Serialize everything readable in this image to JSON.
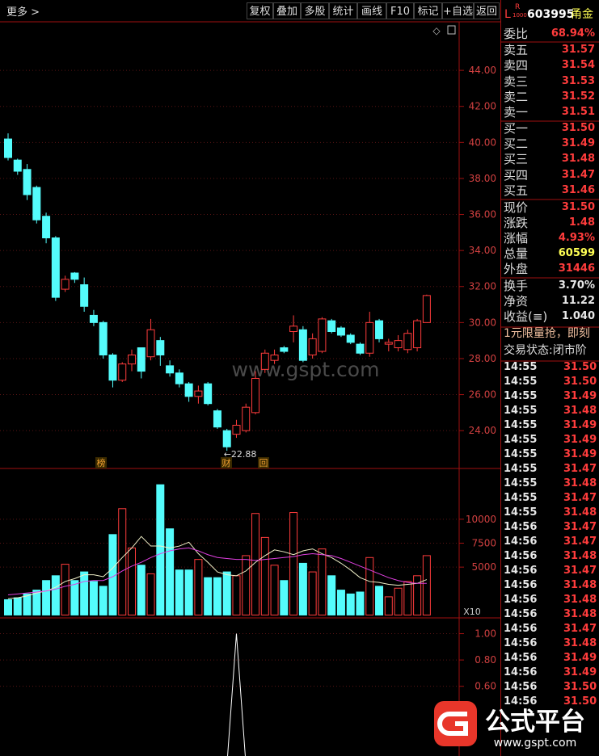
{
  "toolbar": {
    "more": "更多 >",
    "buttons": [
      "复权",
      "叠加",
      "多股",
      "统计",
      "画线",
      "F10",
      "标记",
      "+自选",
      "返回"
    ]
  },
  "chart_data": [
    {
      "type": "candlestick",
      "colors": {
        "up": "#ff3c3c",
        "down": "#54fcfc"
      },
      "open": [
        40.19,
        39.02,
        38.5,
        37.5,
        35.9,
        34.7,
        31.85,
        32.75,
        32.1,
        30.4,
        30.0,
        28.2,
        26.8,
        27.7,
        28.6,
        28.1,
        29.0,
        27.6,
        27.2,
        26.6,
        25.9,
        26.6,
        25.1,
        24.0,
        23.8,
        24.0,
        25.0,
        27.4,
        27.9,
        28.6,
        29.5,
        29.6,
        28.2,
        28.4,
        30.1,
        29.7,
        29.3,
        28.8,
        28.3,
        30.1,
        28.8,
        28.6,
        28.5,
        28.6,
        30.0
      ],
      "high": [
        40.5,
        39.1,
        38.8,
        37.6,
        36.1,
        34.8,
        32.6,
        32.8,
        32.5,
        30.7,
        30.1,
        28.3,
        27.8,
        28.5,
        28.6,
        30.2,
        29.2,
        27.9,
        27.4,
        26.7,
        26.5,
        26.7,
        25.2,
        24.1,
        24.6,
        25.5,
        27.3,
        28.5,
        28.5,
        28.7,
        30.4,
        29.8,
        29.4,
        30.3,
        30.2,
        29.8,
        29.4,
        28.9,
        30.6,
        30.2,
        29.1,
        29.3,
        29.6,
        30.2,
        31.55
      ],
      "low": [
        39.0,
        38.2,
        36.8,
        35.5,
        34.4,
        31.2,
        31.7,
        32.2,
        30.6,
        29.8,
        28.0,
        26.4,
        26.7,
        27.3,
        26.9,
        27.9,
        27.6,
        27.0,
        26.4,
        25.6,
        25.5,
        25.4,
        24.1,
        22.88,
        23.6,
        23.9,
        24.9,
        27.2,
        27.7,
        28.3,
        28.9,
        27.8,
        28.0,
        28.3,
        29.4,
        29.2,
        28.8,
        28.2,
        28.1,
        28.9,
        28.4,
        28.4,
        28.3,
        28.4,
        30.0
      ],
      "close": [
        39.16,
        38.4,
        37.1,
        35.7,
        34.7,
        31.4,
        32.4,
        32.4,
        30.9,
        30.0,
        28.2,
        26.8,
        27.7,
        28.2,
        27.3,
        29.6,
        28.2,
        27.2,
        26.6,
        25.9,
        26.2,
        25.5,
        24.2,
        23.1,
        24.3,
        25.3,
        26.9,
        28.3,
        28.2,
        28.4,
        29.8,
        27.9,
        29.1,
        30.2,
        29.5,
        29.3,
        28.9,
        28.3,
        30.0,
        29.1,
        28.9,
        29.0,
        29.4,
        30.1,
        31.5
      ],
      "low_label": "←22.88",
      "events": [
        "榜",
        "财",
        "回"
      ],
      "watermark": "www.gspt.com",
      "ylim": [
        21.9,
        46.65
      ],
      "yticks": [
        {
          "value": 24,
          "label": "24.00"
        },
        {
          "value": 26,
          "label": "26.00"
        },
        {
          "value": 28,
          "label": "28.00"
        },
        {
          "value": 30,
          "label": "30.00"
        },
        {
          "value": 32,
          "label": "32.00"
        },
        {
          "value": 34,
          "label": "34.00"
        },
        {
          "value": 36,
          "label": "36.00"
        },
        {
          "value": 38,
          "label": "38.00"
        },
        {
          "value": 40,
          "label": "40.00"
        },
        {
          "value": 42,
          "label": "42.00"
        },
        {
          "value": 44,
          "label": "44.00"
        }
      ],
      "grid": true
    },
    {
      "type": "bar",
      "unit_label": "X10",
      "values": [
        1600,
        1800,
        2200,
        2600,
        3600,
        4100,
        5300,
        3600,
        4500,
        3500,
        3000,
        8400,
        11100,
        7000,
        5200,
        4300,
        13600,
        9000,
        4700,
        4700,
        5800,
        3900,
        3900,
        4500,
        4100,
        6200,
        10600,
        8100,
        5200,
        3600,
        10700,
        5400,
        4500,
        6900,
        4100,
        2600,
        2200,
        2400,
        6000,
        3000,
        1900,
        2800,
        3500,
        4100,
        6200
      ],
      "series": [
        {
          "color": "#f0f0c8",
          "values": [
            1700,
            1800,
            2000,
            2300,
            2500,
            2900,
            3500,
            3800,
            4200,
            4200,
            4000,
            4900,
            6000,
            7000,
            8200,
            7200,
            7200,
            7000,
            7200,
            7600,
            6400,
            5500,
            4500,
            4200,
            4100,
            4600,
            5500,
            6200,
            6800,
            6600,
            6300,
            6700,
            6900,
            6400,
            6000,
            5400,
            4700,
            3900,
            3500,
            3400,
            3200,
            3100,
            3200,
            3300,
            3700
          ]
        },
        {
          "color": "#e040e0",
          "values": [
            2100,
            2200,
            2300,
            2400,
            2500,
            2700,
            3000,
            3200,
            3500,
            3600,
            3600,
            4000,
            4600,
            5100,
            5500,
            6000,
            6400,
            6700,
            6900,
            7000,
            6700,
            6300,
            6000,
            5900,
            5800,
            5800,
            5700,
            5800,
            5900,
            6000,
            6100,
            6300,
            6400,
            6300,
            6200,
            5900,
            5500,
            5100,
            4700,
            4300,
            3900,
            3600,
            3400,
            3300,
            3300
          ]
        }
      ],
      "ylim": [
        -300,
        15300
      ],
      "yticks": [
        5000,
        7500,
        10000
      ],
      "grid": true
    },
    {
      "type": "line",
      "series": [
        {
          "color": "#ffffff",
          "values": [
            0,
            0,
            0,
            0,
            0,
            0,
            0,
            0,
            0,
            0,
            0,
            0,
            0,
            0,
            0,
            0,
            0,
            0,
            0,
            0,
            0,
            0,
            0,
            0,
            1,
            0,
            0,
            0,
            0,
            0,
            0,
            0,
            0,
            0,
            0,
            0,
            0,
            0,
            0,
            0,
            0,
            0,
            0,
            0,
            0
          ]
        }
      ],
      "ylim": [
        0.07,
        1.12
      ],
      "yticks": [
        {
          "value": 0.6,
          "label": "0.60"
        },
        {
          "value": 0.8,
          "label": "0.80"
        },
        {
          "value": 1.0,
          "label": "1.00"
        }
      ],
      "grid": true
    }
  ],
  "quote": {
    "flags": [
      "L",
      "R",
      "1000"
    ],
    "code": "603995",
    "name": "甬金",
    "rows": [
      {
        "label": "委比",
        "value": "68.94%",
        "color": "#ff3c3c"
      },
      {
        "label": "卖五",
        "value": "31.57",
        "color": "#ff3c3c"
      },
      {
        "label": "卖四",
        "value": "31.54",
        "color": "#ff3c3c"
      },
      {
        "label": "卖三",
        "value": "31.53",
        "color": "#ff3c3c"
      },
      {
        "label": "卖二",
        "value": "31.52",
        "color": "#ff3c3c"
      },
      {
        "label": "卖一",
        "value": "31.51",
        "color": "#ff3c3c"
      },
      {
        "label": "买一",
        "value": "31.50",
        "color": "#ff3c3c"
      },
      {
        "label": "买二",
        "value": "31.49",
        "color": "#ff3c3c"
      },
      {
        "label": "买三",
        "value": "31.48",
        "color": "#ff3c3c"
      },
      {
        "label": "买四",
        "value": "31.47",
        "color": "#ff3c3c"
      },
      {
        "label": "买五",
        "value": "31.46",
        "color": "#ff3c3c"
      },
      {
        "label": "现价",
        "value": "31.50",
        "color": "#ff3c3c"
      },
      {
        "label": "涨跌",
        "value": "1.48",
        "color": "#ff3c3c"
      },
      {
        "label": "涨幅",
        "value": "4.93%",
        "color": "#ff3c3c"
      },
      {
        "label": "总量",
        "value": "60599",
        "color": "#ffff54"
      },
      {
        "label": "外盘",
        "value": "31446",
        "color": "#ff3c3c"
      },
      {
        "label": "换手",
        "value": "3.70%",
        "color": "#e8e8e8"
      },
      {
        "label": "净资",
        "value": "11.22",
        "color": "#e8e8e8"
      },
      {
        "label": "收益(≡)",
        "value": "1.040",
        "color": "#e8e8e8"
      }
    ],
    "promo": "1元限量抢，即刻",
    "status": "交易状态:闭市阶",
    "trades": [
      [
        "14:55",
        "31.50"
      ],
      [
        "14:55",
        "31.50"
      ],
      [
        "14:55",
        "31.49"
      ],
      [
        "14:55",
        "31.48"
      ],
      [
        "14:55",
        "31.49"
      ],
      [
        "14:55",
        "31.49"
      ],
      [
        "14:55",
        "31.49"
      ],
      [
        "14:55",
        "31.47"
      ],
      [
        "14:55",
        "31.48"
      ],
      [
        "14:55",
        "31.47"
      ],
      [
        "14:55",
        "31.48"
      ],
      [
        "14:56",
        "31.47"
      ],
      [
        "14:56",
        "31.47"
      ],
      [
        "14:56",
        "31.48"
      ],
      [
        "14:56",
        "31.47"
      ],
      [
        "14:56",
        "31.48"
      ],
      [
        "14:56",
        "31.48"
      ],
      [
        "14:56",
        "31.48"
      ],
      [
        "14:56",
        "31.47"
      ],
      [
        "14:56",
        "31.48"
      ],
      [
        "14:56",
        "31.49"
      ],
      [
        "14:56",
        "31.49"
      ],
      [
        "14:56",
        "31.50"
      ],
      [
        "14:56",
        "31.50"
      ]
    ]
  },
  "logo": {
    "title": "公式平台",
    "url": "www.gspt.com"
  }
}
